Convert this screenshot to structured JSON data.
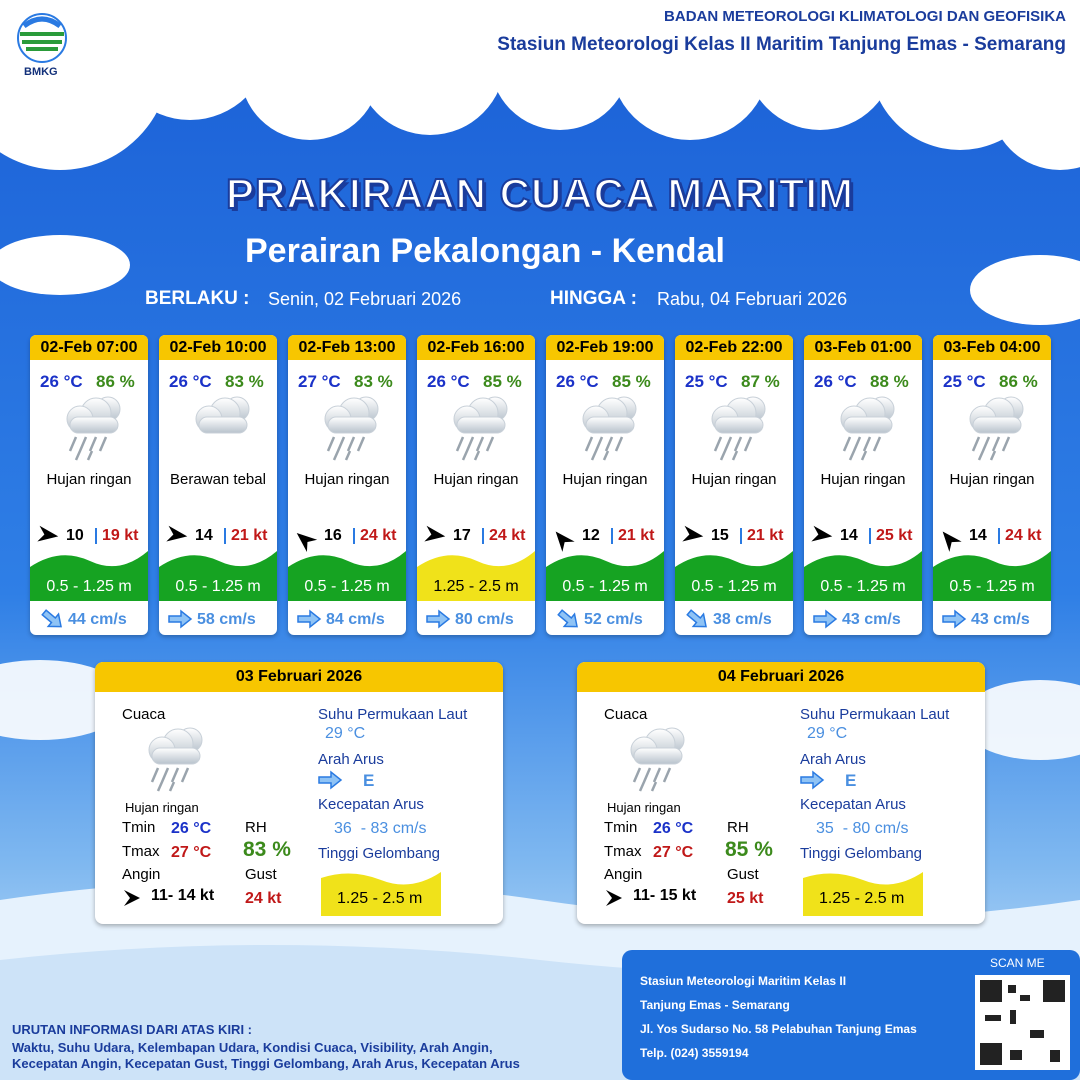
{
  "header": {
    "logo": "BMKG",
    "org": "BADAN METEOROLOGI KLIMATOLOGI DAN GEOFISIKA",
    "station": "Stasiun Meteorologi Kelas II Maritim Tanjung Emas - Semarang",
    "title": "PRAKIRAAN CUACA MARITIM",
    "subtitle": "Perairan Pekalongan - Kendal",
    "from_label": "BERLAKU :",
    "from": "Senin, 02 Februari 2026",
    "to_label": "HINGGA :",
    "to": "Rabu, 04 Februari 2026"
  },
  "cards": [
    {
      "time": "02-Feb 07:00",
      "temp": "26 °C",
      "rh": "86 %",
      "weather": "Hujan ringan",
      "wind": "10",
      "gust": "19 kt",
      "wave": "0.5 - 1.25 m",
      "current": "44 cm/s"
    },
    {
      "time": "02-Feb 10:00",
      "temp": "26 °C",
      "rh": "83 %",
      "weather": "Berawan tebal",
      "wind": "14",
      "gust": "21 kt",
      "wave": "0.5 - 1.25 m",
      "current": "58 cm/s"
    },
    {
      "time": "02-Feb 13:00",
      "temp": "27 °C",
      "rh": "83 %",
      "weather": "Hujan ringan",
      "wind": "16",
      "gust": "24 kt",
      "wave": "0.5 - 1.25 m",
      "current": "84 cm/s"
    },
    {
      "time": "02-Feb 16:00",
      "temp": "26 °C",
      "rh": "85 %",
      "weather": "Hujan ringan",
      "wind": "17",
      "gust": "24 kt",
      "wave": "1.25 - 2.5 m",
      "current": "80 cm/s"
    },
    {
      "time": "02-Feb 19:00",
      "temp": "26 °C",
      "rh": "85 %",
      "weather": "Hujan ringan",
      "wind": "12",
      "gust": "21 kt",
      "wave": "0.5 - 1.25 m",
      "current": "52 cm/s"
    },
    {
      "time": "02-Feb 22:00",
      "temp": "25 °C",
      "rh": "87 %",
      "weather": "Hujan ringan",
      "wind": "15",
      "gust": "21 kt",
      "wave": "0.5 - 1.25 m",
      "current": "38 cm/s"
    },
    {
      "time": "03-Feb 01:00",
      "temp": "26 °C",
      "rh": "88 %",
      "weather": "Hujan ringan",
      "wind": "14",
      "gust": "25 kt",
      "wave": "0.5 - 1.25 m",
      "current": "43 cm/s"
    },
    {
      "time": "03-Feb 04:00",
      "temp": "25 °C",
      "rh": "86 %",
      "weather": "Hujan ringan",
      "wind": "14",
      "gust": "24 kt",
      "wave": "0.5 - 1.25 m",
      "current": "43 cm/s"
    }
  ],
  "daily": [
    {
      "date": "03 Februari 2026",
      "weather_label": "Cuaca",
      "weather": "Hujan ringan",
      "tmin_label": "Tmin",
      "tmin": "26 °C",
      "tmax_label": "Tmax",
      "tmax": "27 °C",
      "rh_label": "RH",
      "rh": "83 %",
      "wind_label": "Angin",
      "wind": "11- 14 kt",
      "gust_label": "Gust",
      "gust": "24 kt",
      "sst_label": "Suhu Permukaan Laut",
      "sst": "29 °C",
      "dir_label": "Arah Arus",
      "dir": "E",
      "speed_label": "Kecepatan Arus",
      "speed": "36  - 83 cm/s",
      "wave_label": "Tinggi Gelombang",
      "wave": "1.25 - 2.5 m"
    },
    {
      "date": "04 Februari 2026",
      "weather_label": "Cuaca",
      "weather": "Hujan ringan",
      "tmin_label": "Tmin",
      "tmin": "26 °C",
      "tmax_label": "Tmax",
      "tmax": "27 °C",
      "rh_label": "RH",
      "rh": "85 %",
      "wind_label": "Angin",
      "wind": "11- 15 kt",
      "gust_label": "Gust",
      "gust": "25 kt",
      "sst_label": "Suhu Permukaan Laut",
      "sst": "29 °C",
      "dir_label": "Arah Arus",
      "dir": "E",
      "speed_label": "Kecepatan Arus",
      "speed": "35  - 80 cm/s",
      "wave_label": "Tinggi Gelombang",
      "wave": "1.25 - 2.5 m"
    }
  ],
  "footer": {
    "legend_title": "URUTAN INFORMASI DARI ATAS KIRI :",
    "legend_lines": [
      "Waktu, Suhu Udara, Kelembapan Udara, Kondisi Cuaca, Visibility, Arah Angin,",
      "Kecepatan Angin, Kecepatan Gust, Tinggi Gelombang, Arah Arus, Kecepatan Arus"
    ],
    "contact": [
      "Stasiun Meteorologi Maritim Kelas II",
      "Tanjung Emas - Semarang",
      "Jl. Yos Sudarso No. 58 Pelabuhan Tanjung Emas",
      "Telp. (024) 3559194"
    ],
    "scan": "SCAN ME"
  }
}
